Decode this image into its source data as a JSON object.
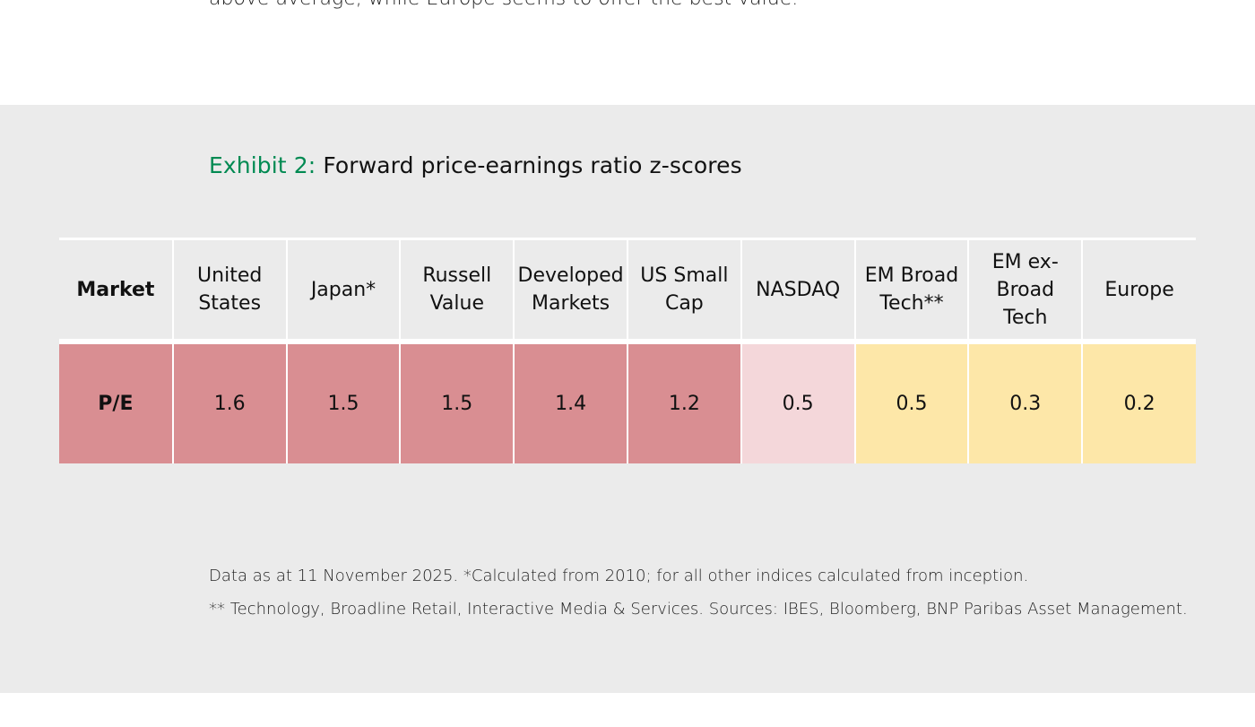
{
  "intro_text_fragment": "above average, while Europe seems to offer the best value.",
  "exhibit": {
    "label": "Exhibit 2:",
    "title": "Forward price-earnings ratio z-scores"
  },
  "table": {
    "row_header": "Market",
    "columns": [
      "United States",
      "Japan*",
      "Russell Value",
      "Developed Markets",
      "US Small Cap",
      "NASDAQ",
      "EM Broad Tech**",
      "EM ex-Broad Tech",
      "Europe"
    ],
    "row_label": "P/E",
    "values": [
      "1.6",
      "1.5",
      "1.5",
      "1.4",
      "1.2",
      "0.5",
      "0.5",
      "0.3",
      "0.2"
    ],
    "cell_colors": [
      "#d98e92",
      "#d98e92",
      "#d98e92",
      "#d98e92",
      "#d98e92",
      "#f4d7da",
      "#fde7a8",
      "#fde7a8",
      "#fde7a8"
    ],
    "row_label_color": "#d98e92"
  },
  "footnotes": {
    "line1": "Data as at 11 November 2025. *Calculated from 2010; for all other indices calculated from inception.",
    "line2": "** Technology, Broadline Retail, Interactive Media & Services. Sources: IBES, Bloomberg, BNP Paribas Asset Management."
  }
}
